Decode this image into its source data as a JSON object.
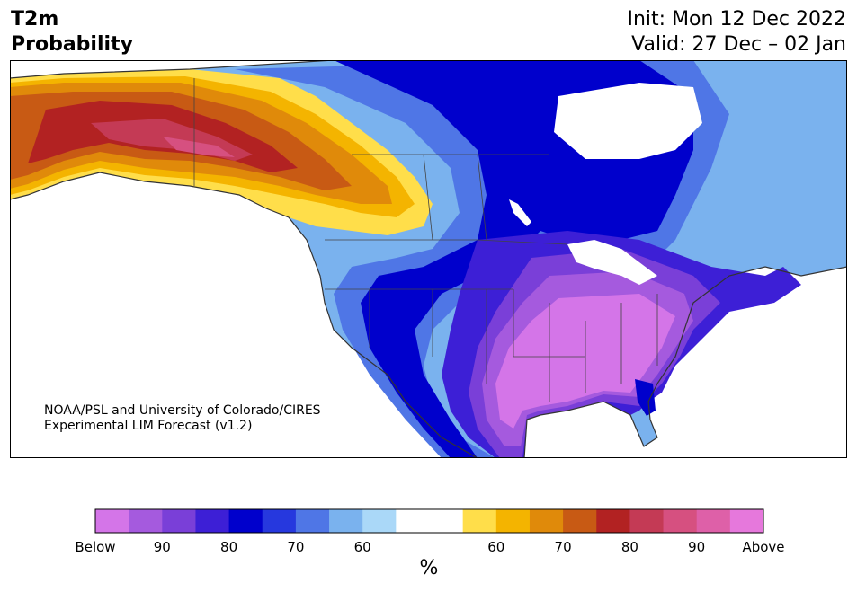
{
  "header": {
    "title_line1": "T2m",
    "title_line2": "Probability",
    "init": "Init: Mon 12 Dec 2022",
    "valid": "Valid: 27 Dec – 02 Jan"
  },
  "credit": {
    "line1": "NOAA/PSL and University of Colorado/CIRES",
    "line2": "Experimental LIM Forecast (v1.2)"
  },
  "colorbar": {
    "colors": [
      "#d475e8",
      "#a55ade",
      "#7a3fd8",
      "#3d1fd6",
      "#0000cc",
      "#2638de",
      "#4f76e6",
      "#7ab2ee",
      "#aad8f8",
      "#ffffff",
      "#ffffff",
      "#ffde4a",
      "#f4b400",
      "#e08a0a",
      "#c85a14",
      "#b22222",
      "#c43a55",
      "#d65080",
      "#de60a8",
      "#e678dc"
    ],
    "tick_labels": [
      "Below",
      "90",
      "80",
      "70",
      "60",
      "60",
      "70",
      "80",
      "90",
      "Above"
    ],
    "unit": "%"
  },
  "map": {
    "region": "North America",
    "categories": [
      "below-normal probability",
      "above-normal probability"
    ]
  }
}
